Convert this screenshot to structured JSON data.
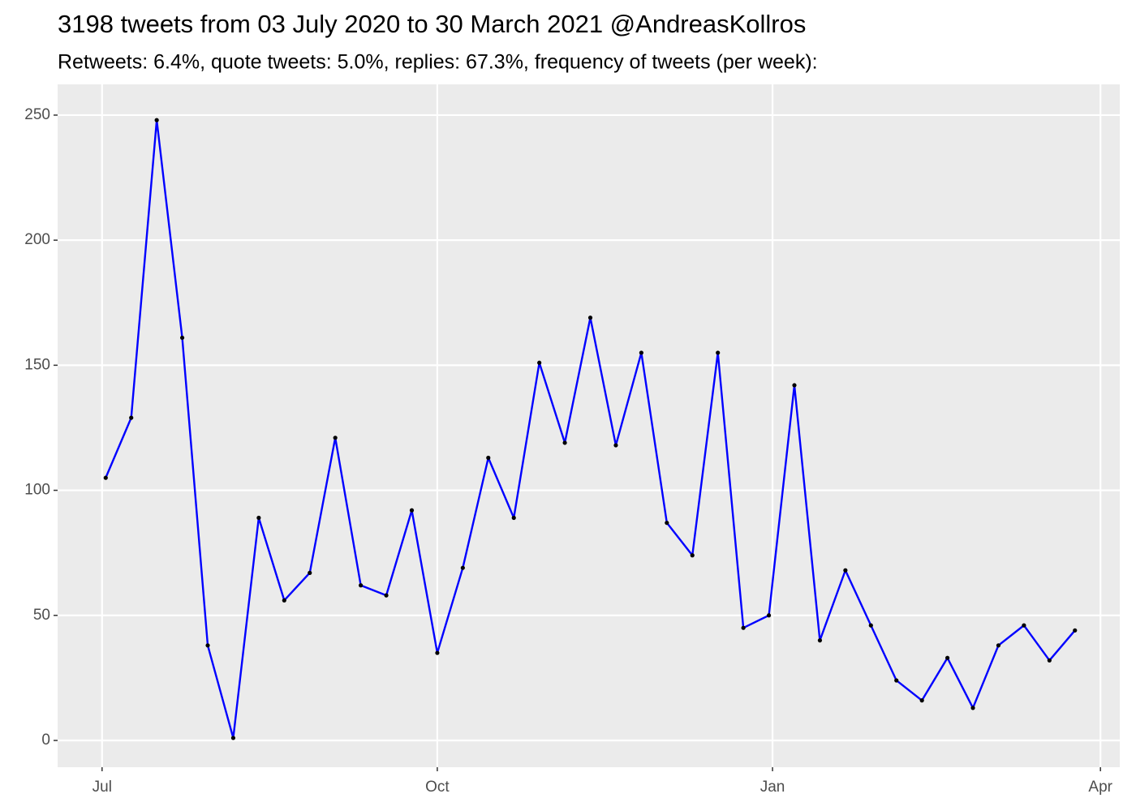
{
  "chart_data": {
    "type": "line",
    "title": "3198 tweets from 03 July 2020 to 30 March 2021 @AndreasKollros",
    "subtitle": "Retweets: 6.4%, quote tweets: 5.0%, replies: 67.3%, frequency of tweets (per week):",
    "x": [
      1,
      8,
      15,
      22,
      29,
      36,
      43,
      50,
      57,
      64,
      71,
      78,
      85,
      92,
      99,
      106,
      113,
      120,
      127,
      134,
      141,
      148,
      155,
      162,
      169,
      176,
      183,
      190,
      197,
      204,
      211,
      218,
      225,
      232,
      239,
      246,
      253,
      260,
      267
    ],
    "values": [
      105,
      129,
      248,
      161,
      38,
      1,
      89,
      56,
      67,
      121,
      62,
      58,
      92,
      35,
      69,
      113,
      89,
      151,
      119,
      169,
      118,
      155,
      87,
      74,
      155,
      45,
      50,
      142,
      40,
      68,
      46,
      24,
      16,
      33,
      13,
      38,
      46,
      32,
      44
    ],
    "line_color": "#0000ff",
    "point_color": "#000000",
    "xlim": [
      -12.2,
      279.3
    ],
    "xticks": [
      {
        "value": 0,
        "label": "Jul"
      },
      {
        "value": 92,
        "label": "Oct"
      },
      {
        "value": 184,
        "label": "Jan"
      },
      {
        "value": 274,
        "label": "Apr"
      }
    ],
    "ylim": [
      -10.7,
      262.3
    ],
    "yticks": [
      0,
      50,
      100,
      150,
      200,
      250
    ],
    "grid": true
  }
}
